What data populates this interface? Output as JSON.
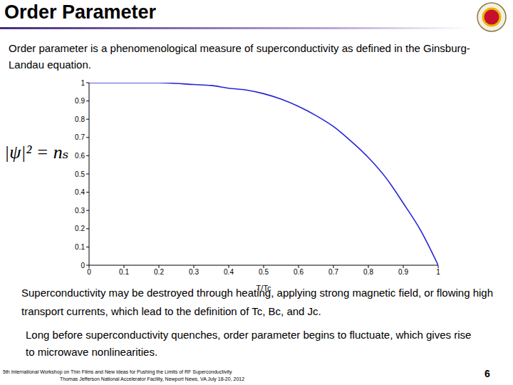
{
  "title": "Order Parameter",
  "intro": "Order parameter is a phenomenological measure of superconductivity as defined in the Ginsburg-Landau equation.",
  "equation": "|ψ|² = nₛ",
  "chart_data": {
    "type": "line",
    "x_label": "T/Tc",
    "x": [
      0,
      0.05,
      0.1,
      0.15,
      0.2,
      0.25,
      0.3,
      0.35,
      0.4,
      0.45,
      0.5,
      0.55,
      0.6,
      0.65,
      0.7,
      0.75,
      0.8,
      0.85,
      0.9,
      0.95,
      1
    ],
    "values": [
      1,
      1,
      1,
      1,
      1,
      0.996,
      0.99,
      0.985,
      0.97,
      0.96,
      0.94,
      0.91,
      0.87,
      0.82,
      0.76,
      0.68,
      0.59,
      0.48,
      0.34,
      0.19,
      0
    ],
    "color": "#2424d6",
    "xlim": [
      0,
      1
    ],
    "ylim": [
      0,
      1
    ],
    "xticks": [
      0,
      0.1,
      0.2,
      0.3,
      0.4,
      0.5,
      0.6,
      0.7,
      0.8,
      0.9,
      1
    ],
    "yticks": [
      0,
      0.1,
      0.2,
      0.3,
      0.4,
      0.5,
      0.6,
      0.7,
      0.8,
      0.9,
      1
    ],
    "grid": false
  },
  "paragraphs": [
    "Superconductivity may be destroyed through heating, applying strong magnetic field, or flowing high transport currents, which lead to the definition of Tc, Bc, and Jc.",
    "Long before superconductivity quenches, order parameter begins to fluctuate, which gives rise to microwave nonlinearities."
  ],
  "footer": {
    "lines": [
      "5th International Workshop on Thin Films and New Ideas for Pushing the Limits of RF Superconductivity",
      "Thomas Jefferson National Accelerator Facility, Newport News, VA   July 18-20, 2012"
    ],
    "page": "6"
  }
}
